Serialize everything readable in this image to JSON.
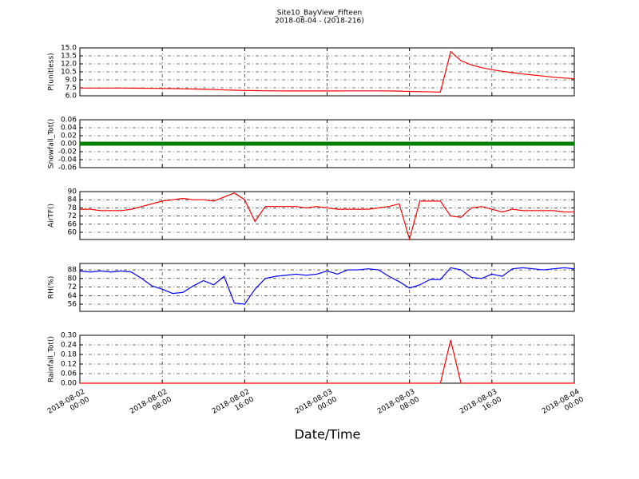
{
  "title": "Site10_BayView_Fifteen",
  "subtitle": "2018-08-04 - (2018-216)",
  "xlabel": "Date/Time",
  "x_axis": {
    "x": [
      "2018-08-02 00:00",
      "2018-08-02 01:00",
      "2018-08-02 02:00",
      "2018-08-02 03:00",
      "2018-08-02 04:00",
      "2018-08-02 05:00",
      "2018-08-02 06:00",
      "2018-08-02 07:00",
      "2018-08-02 08:00",
      "2018-08-02 09:00",
      "2018-08-02 10:00",
      "2018-08-02 11:00",
      "2018-08-02 12:00",
      "2018-08-02 13:00",
      "2018-08-02 14:00",
      "2018-08-02 15:00",
      "2018-08-02 16:00",
      "2018-08-02 17:00",
      "2018-08-02 18:00",
      "2018-08-02 19:00",
      "2018-08-02 20:00",
      "2018-08-02 21:00",
      "2018-08-02 22:00",
      "2018-08-02 23:00",
      "2018-08-03 00:00",
      "2018-08-03 01:00",
      "2018-08-03 02:00",
      "2018-08-03 03:00",
      "2018-08-03 04:00",
      "2018-08-03 05:00",
      "2018-08-03 06:00",
      "2018-08-03 07:00",
      "2018-08-03 08:00",
      "2018-08-03 09:00",
      "2018-08-03 10:00",
      "2018-08-03 11:00",
      "2018-08-03 12:00",
      "2018-08-03 13:00",
      "2018-08-03 14:00",
      "2018-08-03 15:00",
      "2018-08-03 16:00",
      "2018-08-03 17:00",
      "2018-08-03 18:00",
      "2018-08-03 19:00",
      "2018-08-03 20:00",
      "2018-08-03 21:00",
      "2018-08-03 22:00",
      "2018-08-03 23:00",
      "2018-08-04 00:00"
    ],
    "xlim": [
      "2018-08-02 00:00",
      "2018-08-04 00:00"
    ],
    "xticks": [
      {
        "value": "2018-08-02 00:00",
        "label": "2018-08-02\n00:00"
      },
      {
        "value": "2018-08-02 08:00",
        "label": "2018-08-02\n08:00"
      },
      {
        "value": "2018-08-02 16:00",
        "label": "2018-08-02\n16:00"
      },
      {
        "value": "2018-08-03 00:00",
        "label": "2018-08-03\n00:00"
      },
      {
        "value": "2018-08-03 08:00",
        "label": "2018-08-03\n08:00"
      },
      {
        "value": "2018-08-03 16:00",
        "label": "2018-08-03\n16:00"
      },
      {
        "value": "2018-08-04 00:00",
        "label": "2018-08-04\n00:00"
      }
    ]
  },
  "chart_data": [
    {
      "type": "line",
      "ylabel": "P(unitless)",
      "color": "#ff0000",
      "grid": true,
      "ylim": [
        6,
        15
      ],
      "yticks": [
        {
          "value": 6,
          "label": "6.0"
        },
        7.5,
        {
          "value": 9,
          "label": "9.0"
        },
        10.5,
        {
          "value": 12,
          "label": "12.0"
        },
        13.5,
        {
          "value": 15,
          "label": "15.0"
        }
      ],
      "values": [
        7.45,
        7.45,
        7.45,
        7.45,
        7.45,
        7.44,
        7.43,
        7.4,
        7.38,
        7.35,
        7.3,
        7.27,
        7.22,
        7.17,
        7.1,
        7.05,
        7.0,
        6.97,
        6.95,
        6.93,
        6.92,
        6.92,
        6.92,
        6.92,
        6.92,
        6.92,
        6.93,
        6.93,
        6.93,
        6.93,
        6.92,
        6.88,
        6.82,
        6.78,
        6.74,
        6.7,
        14.3,
        12.6,
        11.8,
        11.3,
        10.9,
        10.6,
        10.35,
        10.1,
        9.9,
        9.7,
        9.5,
        9.35,
        9.2
      ]
    },
    {
      "type": "line",
      "ylabel": "Snowfall_Tot()",
      "color": "#008000",
      "grid": true,
      "ylim": [
        -0.06,
        0.06
      ],
      "yticks": [
        -0.06,
        -0.04,
        -0.02,
        {
          "value": 0,
          "label": "0.00"
        },
        0.02,
        0.04,
        0.06
      ],
      "values": [
        0,
        0,
        0,
        0,
        0,
        0,
        0,
        0,
        0,
        0,
        0,
        0,
        0,
        0,
        0,
        0,
        0,
        0,
        0,
        0,
        0,
        0,
        0,
        0,
        0,
        0,
        0,
        0,
        0,
        0,
        0,
        0,
        0,
        0,
        0,
        0,
        0,
        0,
        0,
        0,
        0,
        0,
        0,
        0,
        0,
        0,
        0,
        0,
        0
      ]
    },
    {
      "type": "line",
      "ylabel": "AirTF()",
      "color": "#ff0000",
      "grid": true,
      "ylim": [
        54.7,
        90
      ],
      "yticks": [
        60,
        66,
        72,
        78,
        84,
        90
      ],
      "values": [
        77,
        77,
        76,
        76,
        76,
        77,
        79,
        81,
        83,
        84,
        85,
        84,
        84,
        83,
        86,
        89,
        84,
        68,
        79,
        79,
        79,
        79,
        78,
        79,
        78,
        77,
        77,
        77,
        77,
        78,
        79,
        81,
        55,
        83,
        83,
        83,
        72,
        71,
        78,
        79,
        77,
        75,
        77,
        76,
        76,
        76,
        76,
        75,
        75
      ]
    },
    {
      "type": "line",
      "ylabel": "RH(%)",
      "color": "#0000ff",
      "grid": true,
      "ylim": [
        49.3,
        94
      ],
      "yticks": [
        56,
        64,
        72,
        80,
        88
      ],
      "values": [
        87,
        86,
        87,
        86,
        87,
        86,
        80,
        73,
        70,
        66,
        67,
        73,
        78,
        74,
        82,
        57,
        56,
        70,
        80,
        82,
        83,
        84,
        83,
        84,
        87,
        84,
        88,
        88,
        89,
        88,
        82,
        77,
        71,
        74,
        79,
        79,
        90,
        88,
        81,
        80,
        84,
        82,
        89,
        90,
        89,
        88,
        89,
        90,
        89
      ]
    },
    {
      "type": "line",
      "ylabel": "Rainfall_Tot()",
      "color": "#ff0000",
      "grid": true,
      "ylim": [
        0,
        0.3
      ],
      "yticks": [
        {
          "value": 0,
          "label": "0.00"
        },
        0.06,
        0.12,
        0.18,
        0.24,
        {
          "value": 0.3,
          "label": "0.30"
        }
      ],
      "values": [
        0,
        0,
        0,
        0,
        0,
        0,
        0,
        0,
        0,
        0,
        0,
        0,
        0,
        0,
        0,
        0,
        0,
        0,
        0,
        0,
        0,
        0,
        0,
        0,
        0,
        0,
        0,
        0,
        0,
        0,
        0,
        0,
        0,
        0,
        0,
        0,
        0.27,
        0,
        0,
        0,
        0,
        0,
        0,
        0,
        0,
        0,
        0,
        0,
        0
      ]
    }
  ]
}
